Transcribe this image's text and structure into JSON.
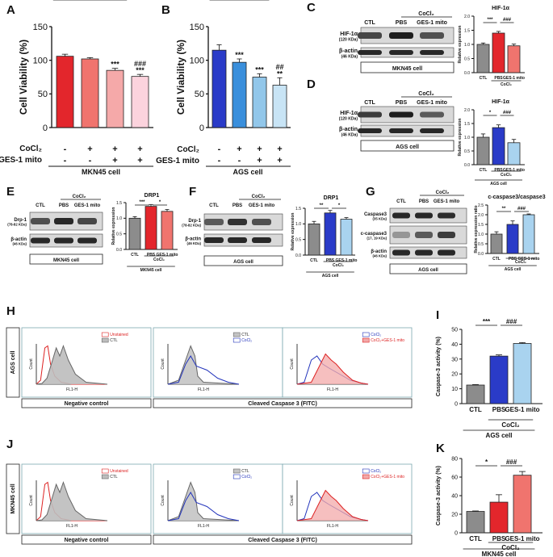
{
  "panels": {
    "A": {
      "letter": "A",
      "chart_data": {
        "type": "bar",
        "ylabel": "Cell Viability (%)",
        "ylim": [
          0,
          150
        ],
        "yticks": [
          "0",
          "50",
          "100",
          "150"
        ],
        "values": [
          106,
          102,
          85,
          76
        ],
        "errors": [
          3,
          2,
          3,
          3
        ],
        "colors": [
          "#e3262c",
          "#f0746e",
          "#f5a9a9",
          "#fbd3dd"
        ],
        "sig_top": [
          "",
          "",
          "***",
          "###"
        ],
        "sig_bottom": [
          "",
          "",
          "",
          "***"
        ],
        "row_labels": [
          "CoCl₂",
          "GES-1 mito"
        ],
        "row_values": [
          [
            "-",
            "+",
            "+",
            "+"
          ],
          [
            "-",
            "-",
            "+",
            "+"
          ]
        ],
        "footer": "MKN45 cell"
      }
    },
    "B": {
      "letter": "B",
      "chart_data": {
        "type": "bar",
        "ylabel": "Cell Viability (%)",
        "ylim": [
          0,
          150
        ],
        "yticks": [
          "0",
          "50",
          "100",
          "150"
        ],
        "values": [
          115,
          97,
          75,
          63
        ],
        "errors": [
          8,
          5,
          5,
          11
        ],
        "colors": [
          "#2a3bc8",
          "#3a8fdc",
          "#92c7ea",
          "#c8e4f5"
        ],
        "sig_top": [
          "",
          "***",
          "***",
          "##"
        ],
        "sig_bottom": [
          "",
          "",
          "",
          "**"
        ],
        "row_labels": [
          "CoCl₂",
          "GES-1 mito"
        ],
        "row_values": [
          [
            "-",
            "+",
            "+",
            "+"
          ],
          [
            "-",
            "-",
            "+",
            "+"
          ]
        ],
        "footer": "AGS cell"
      }
    },
    "C": {
      "letter": "C",
      "blot": {
        "header_group": "CoCl₂",
        "lanes": [
          "CTL",
          "PBS",
          "GES-1 mito"
        ],
        "bands": [
          {
            "name": "HIF-1α",
            "size": "(120 KDa)"
          },
          {
            "name": "β-actin",
            "size": "(46 KDa)"
          }
        ],
        "footer": "MKN45 cell"
      },
      "chart_data": {
        "type": "bar",
        "title": "HIF-1α",
        "ylabel": "Relative expression",
        "ylim": [
          0,
          2.0
        ],
        "yticks": [
          "0.0",
          "0.5",
          "1.0",
          "1.5",
          "2.0"
        ],
        "categories": [
          "CTL",
          "PBS",
          "GES-1 mito"
        ],
        "values": [
          1.0,
          1.4,
          0.95
        ],
        "errors": [
          0.05,
          0.06,
          0.06
        ],
        "colors": [
          "#8c8c8c",
          "#e3262c",
          "#f0746e"
        ],
        "brackets": [
          {
            "label": "***"
          },
          {
            "label": "###"
          }
        ],
        "group_label": "CoCl₂",
        "footer": ""
      }
    },
    "D": {
      "letter": "D",
      "blot": {
        "header_group": "CoCl₂",
        "lanes": [
          "CTL",
          "PBS",
          "GES-1 mito"
        ],
        "bands": [
          {
            "name": "HIF-1α",
            "size": "(120 KDa)"
          },
          {
            "name": "β-actin",
            "size": "(46 KDa)"
          }
        ],
        "footer": "AGS cell"
      },
      "chart_data": {
        "type": "bar",
        "title": "HIF-1α",
        "ylabel": "Relative expression",
        "ylim": [
          0,
          2.0
        ],
        "yticks": [
          "0.0",
          "0.5",
          "1.0",
          "1.5",
          "2.0"
        ],
        "categories": [
          "CTL",
          "PBS",
          "GES-1 mito"
        ],
        "values": [
          1.0,
          1.35,
          0.8
        ],
        "errors": [
          0.12,
          0.1,
          0.12
        ],
        "colors": [
          "#8c8c8c",
          "#2a3bc8",
          "#a9d3ef"
        ],
        "brackets": [
          {
            "label": "*"
          },
          {
            "label": "###"
          }
        ],
        "group_label": "CoCl₂",
        "footer": "AGS cell"
      }
    },
    "E": {
      "letter": "E",
      "blot": {
        "header_group": "CoCl₂",
        "lanes": [
          "CTL",
          "PBS",
          "GES-1 mito"
        ],
        "bands": [
          {
            "name": "Drp-1",
            "size": "(78-82 KDa)"
          },
          {
            "name": "β-actin",
            "size": "(46 KDa)"
          }
        ],
        "footer": "MKN45 cell"
      },
      "chart_data": {
        "type": "bar",
        "title": "DRP1",
        "ylabel": "Relative expression",
        "ylim": [
          0,
          1.5
        ],
        "yticks": [
          "0.0",
          "0.5",
          "1.0",
          "1.5"
        ],
        "categories": [
          "CTL",
          "PBS",
          "GES-1 mito"
        ],
        "values": [
          1.0,
          1.38,
          1.22
        ],
        "errors": [
          0.05,
          0.06,
          0.06
        ],
        "colors": [
          "#8c8c8c",
          "#e3262c",
          "#f0746e"
        ],
        "brackets": [
          {
            "label": "***"
          },
          {
            "label": "*"
          }
        ],
        "group_label": "CoCl₂",
        "footer": "MKN45 cell"
      }
    },
    "F": {
      "letter": "F",
      "blot": {
        "header_group": "CoCl₂",
        "lanes": [
          "CTL",
          "PBS",
          "GES-1 mito"
        ],
        "bands": [
          {
            "name": "Drp-1",
            "size": "(78-82 KDa)"
          },
          {
            "name": "β-actin",
            "size": "(46 KDa)"
          }
        ],
        "footer": "AGS cell"
      },
      "chart_data": {
        "type": "bar",
        "title": "DRP1",
        "ylabel": "Relative expression",
        "ylim": [
          0,
          1.5
        ],
        "yticks": [
          "0.0",
          "0.5",
          "1.0",
          "1.5"
        ],
        "categories": [
          "CTL",
          "PBS",
          "GES-1 mito"
        ],
        "values": [
          1.0,
          1.35,
          1.15
        ],
        "errors": [
          0.08,
          0.08,
          0.05
        ],
        "colors": [
          "#8c8c8c",
          "#2a3bc8",
          "#a9d3ef"
        ],
        "brackets": [
          {
            "label": "**"
          },
          {
            "label": "*"
          }
        ],
        "group_label": "CoCl₂",
        "footer": "AGS cell"
      }
    },
    "G": {
      "letter": "G",
      "blot": {
        "header_group": "CoCl₂",
        "lanes": [
          "CTL",
          "PBS",
          "GES-1 mito"
        ],
        "bands": [
          {
            "name": "Caspase3",
            "size": "(35 KDa)"
          },
          {
            "name": "c-caspase3",
            "size": "(17, 19 KDa)"
          },
          {
            "name": "β-actin",
            "size": "(46 KDa)"
          }
        ],
        "footer": "AGS cell"
      },
      "chart_data": {
        "type": "bar",
        "title": "c-caspase3/caspase3",
        "ylabel": "Relative expression ratio",
        "ylim": [
          0,
          2.5
        ],
        "yticks": [
          "0.0",
          "0.5",
          "1.0",
          "1.5",
          "2.0",
          "2.5"
        ],
        "categories": [
          "CTL",
          "PBS",
          "GES-1 mito"
        ],
        "values": [
          1.0,
          1.5,
          2.0
        ],
        "errors": [
          0.12,
          0.18,
          0.04
        ],
        "colors": [
          "#8c8c8c",
          "#2a3bc8",
          "#a9d3ef"
        ],
        "brackets": [
          {
            "label": "**"
          },
          {
            "label": "###"
          }
        ],
        "group_label": "CoCl₂",
        "footer": "AGS cell"
      }
    },
    "H": {
      "letter": "H",
      "side_label": "AGS cell",
      "flow": {
        "left_legend": [
          "Unstained",
          "CTL"
        ],
        "mid_legend": [
          "CTL",
          "CoCl₂"
        ],
        "right_legend": [
          "CoCl₂",
          "CoCl₂+GES-1 mito"
        ],
        "y_label": "Count",
        "x_label": "FL1-H",
        "left_footer": "Negative control",
        "right_footer": "Cleaved Caspase 3 (FITC)"
      }
    },
    "I": {
      "letter": "I",
      "chart_data": {
        "type": "bar",
        "ylabel": "Caspase-3 activity (%)",
        "ylim": [
          0,
          50
        ],
        "yticks": [
          "0",
          "10",
          "20",
          "30",
          "40",
          "50"
        ],
        "categories": [
          "CTL",
          "PBS",
          "GES-1 mito"
        ],
        "values": [
          12.5,
          32,
          40.5
        ],
        "errors": [
          0.3,
          0.8,
          0.6
        ],
        "colors": [
          "#8c8c8c",
          "#2a3bc8",
          "#a9d3ef"
        ],
        "brackets": [
          {
            "label": "***"
          },
          {
            "label": "###"
          }
        ],
        "group_label": "CoCl₂",
        "footer": "AGS cell"
      }
    },
    "J": {
      "letter": "J",
      "side_label": "MKN45 cell",
      "flow": {
        "left_legend": [
          "Unstained",
          "CTL"
        ],
        "mid_legend": [
          "CTL",
          "CoCl₂"
        ],
        "right_legend": [
          "CoCl₂",
          "CoCl₂+GES-1 mito"
        ],
        "y_label": "Count",
        "x_label": "FL1-H",
        "left_footer": "Negative control",
        "right_footer": "Cleaved Caspase 3 (FITC)"
      }
    },
    "K": {
      "letter": "K",
      "chart_data": {
        "type": "bar",
        "ylabel": "Caspase-3 activity (%)",
        "ylim": [
          0,
          80
        ],
        "yticks": [
          "0",
          "20",
          "40",
          "60",
          "80"
        ],
        "categories": [
          "CTL",
          "PBS",
          "GES-1 mito"
        ],
        "values": [
          23,
          33,
          62
        ],
        "errors": [
          0.5,
          8,
          4
        ],
        "colors": [
          "#8c8c8c",
          "#e3262c",
          "#f0746e"
        ],
        "brackets": [
          {
            "label": "*"
          },
          {
            "label": "###"
          }
        ],
        "group_label": "CoCl₂",
        "footer": "MKN45 cell"
      }
    }
  }
}
